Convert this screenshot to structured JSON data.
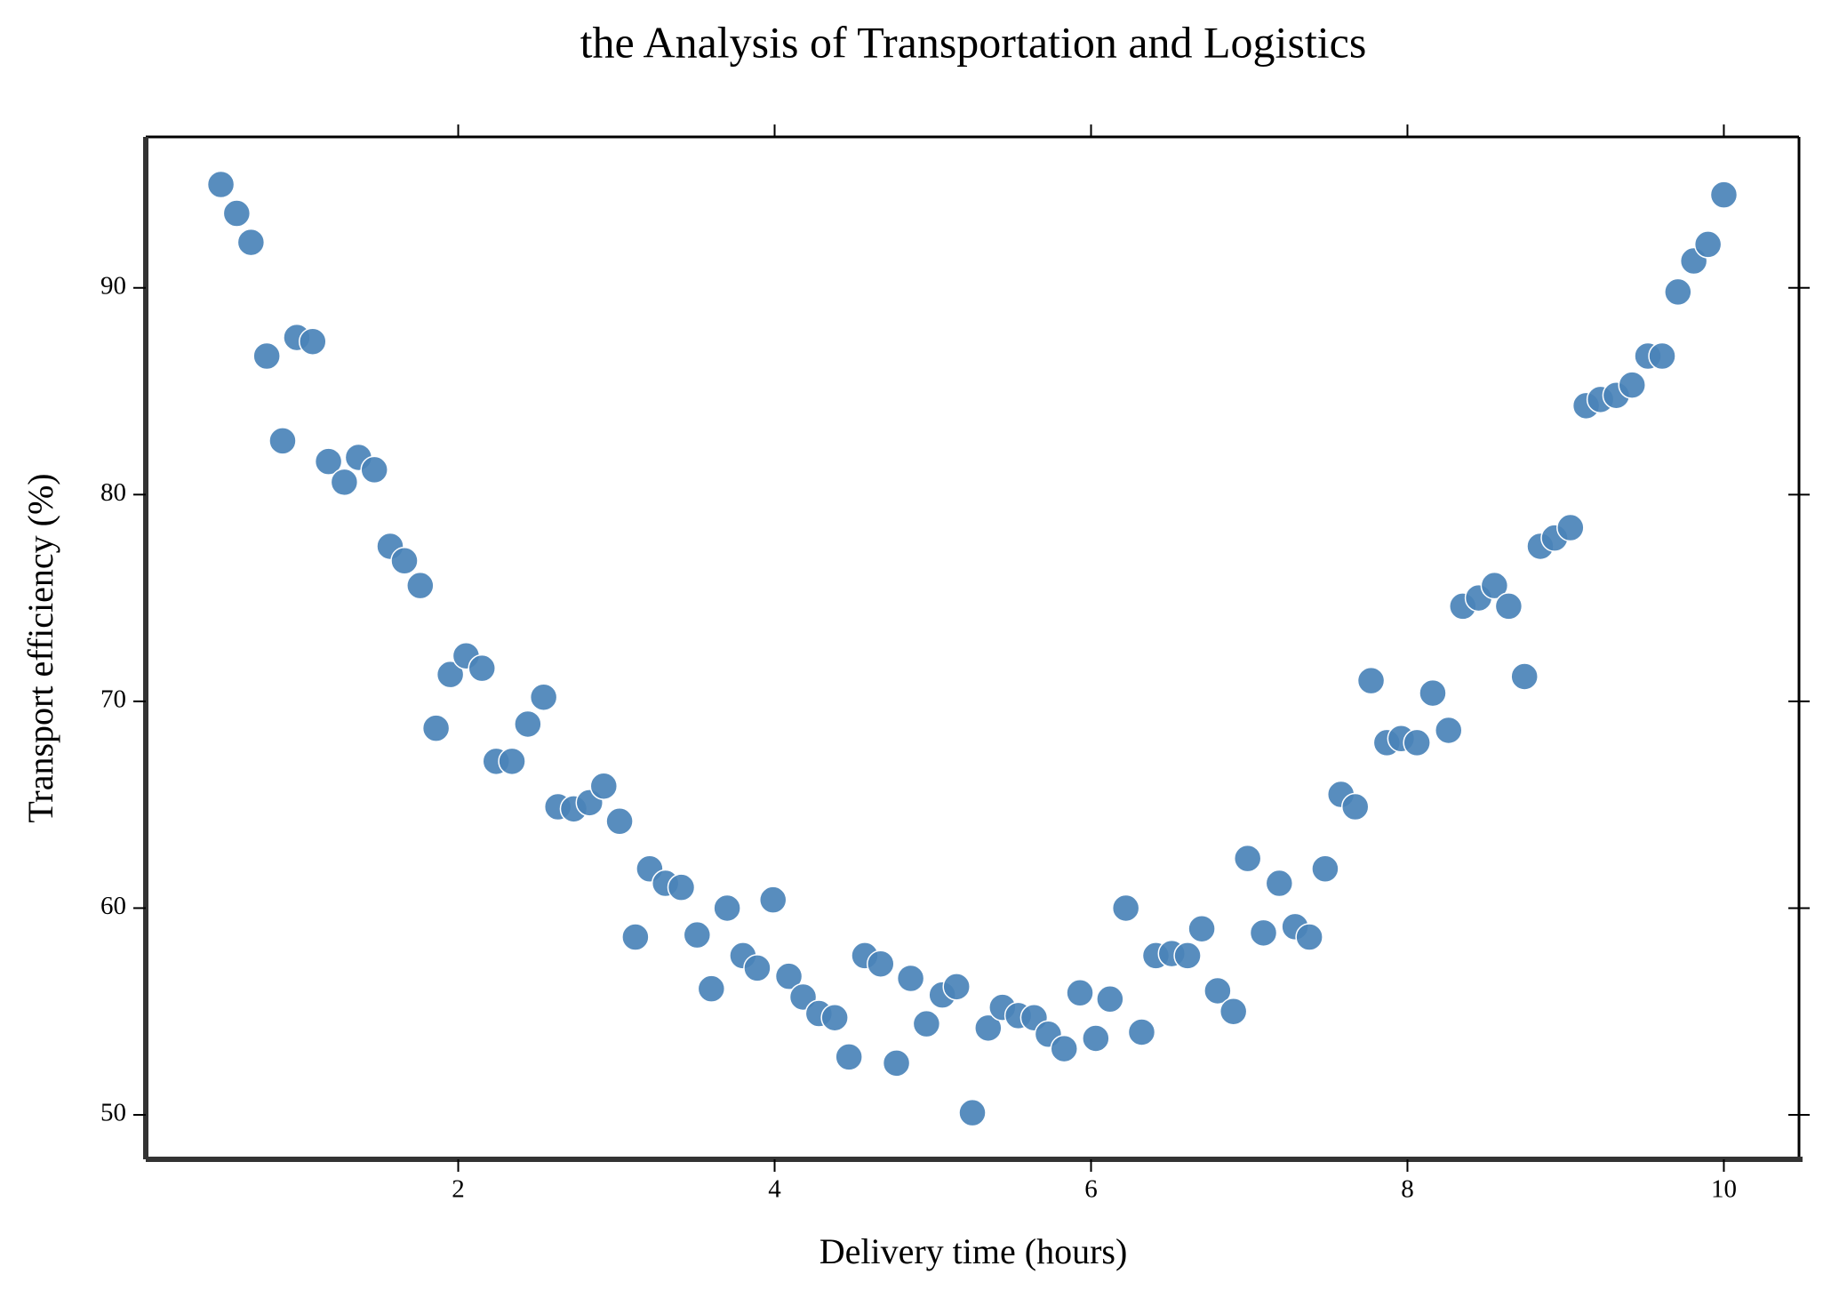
{
  "chart_data": {
    "type": "scatter",
    "title": "the Analysis of Transportation and Logistics",
    "x_label": "Delivery time (hours)",
    "y_label": "Transport efficiency (%)",
    "xlim": [
      0.025,
      10.475
    ],
    "ylim": [
      47.85,
      97.3
    ],
    "xticks": [
      2,
      4,
      6,
      8,
      10
    ],
    "yticks": [
      50,
      60,
      70,
      80,
      90
    ],
    "grid": false,
    "series": [
      {
        "color": "#4a83b9",
        "x": [
          0.5,
          0.6,
          0.69,
          0.79,
          0.89,
          0.98,
          1.08,
          1.18,
          1.28,
          1.37,
          1.47,
          1.57,
          1.66,
          1.76,
          1.86,
          1.95,
          2.05,
          2.15,
          2.24,
          2.34,
          2.44,
          2.54,
          2.63,
          2.73,
          2.83,
          2.92,
          3.02,
          3.12,
          3.21,
          3.31,
          3.41,
          3.51,
          3.6,
          3.7,
          3.8,
          3.89,
          3.99,
          4.09,
          4.18,
          4.28,
          4.38,
          4.47,
          4.57,
          4.67,
          4.77,
          4.86,
          4.96,
          5.06,
          5.15,
          5.25,
          5.35,
          5.44,
          5.54,
          5.64,
          5.73,
          5.83,
          5.93,
          6.03,
          6.12,
          6.22,
          6.32,
          6.41,
          6.51,
          6.61,
          6.7,
          6.8,
          6.9,
          6.99,
          7.09,
          7.19,
          7.29,
          7.38,
          7.48,
          7.58,
          7.67,
          7.77,
          7.87,
          7.96,
          8.06,
          8.16,
          8.26,
          8.35,
          8.45,
          8.55,
          8.64,
          8.74,
          8.84,
          8.93,
          9.03,
          9.13,
          9.22,
          9.32,
          9.42,
          9.52,
          9.61,
          9.71,
          9.81,
          9.9,
          10.0
        ],
        "values": [
          95.0,
          93.6,
          92.2,
          86.7,
          82.6,
          87.6,
          87.4,
          81.6,
          80.6,
          81.8,
          81.2,
          77.5,
          76.8,
          75.6,
          68.7,
          71.3,
          72.2,
          71.6,
          67.1,
          67.1,
          68.9,
          70.2,
          64.9,
          64.8,
          65.1,
          65.9,
          64.2,
          58.6,
          61.9,
          61.2,
          61.0,
          58.7,
          56.1,
          60.0,
          57.7,
          57.1,
          60.4,
          56.7,
          55.7,
          54.9,
          54.7,
          52.8,
          57.7,
          57.3,
          52.5,
          56.6,
          54.4,
          55.8,
          56.2,
          50.1,
          54.2,
          55.2,
          54.8,
          54.7,
          53.9,
          53.2,
          55.9,
          53.7,
          55.6,
          60.0,
          54.0,
          57.7,
          57.8,
          57.7,
          59.0,
          56.0,
          55.0,
          62.4,
          58.8,
          61.2,
          59.1,
          58.6,
          61.9,
          65.5,
          64.9,
          71.0,
          68.0,
          68.2,
          68.0,
          70.4,
          68.6,
          74.6,
          75.0,
          75.6,
          74.6,
          71.2,
          77.5,
          77.9,
          78.4,
          84.3,
          84.6,
          84.8,
          85.3,
          86.7,
          86.7,
          89.8,
          91.3,
          92.1,
          94.5
        ]
      }
    ]
  }
}
